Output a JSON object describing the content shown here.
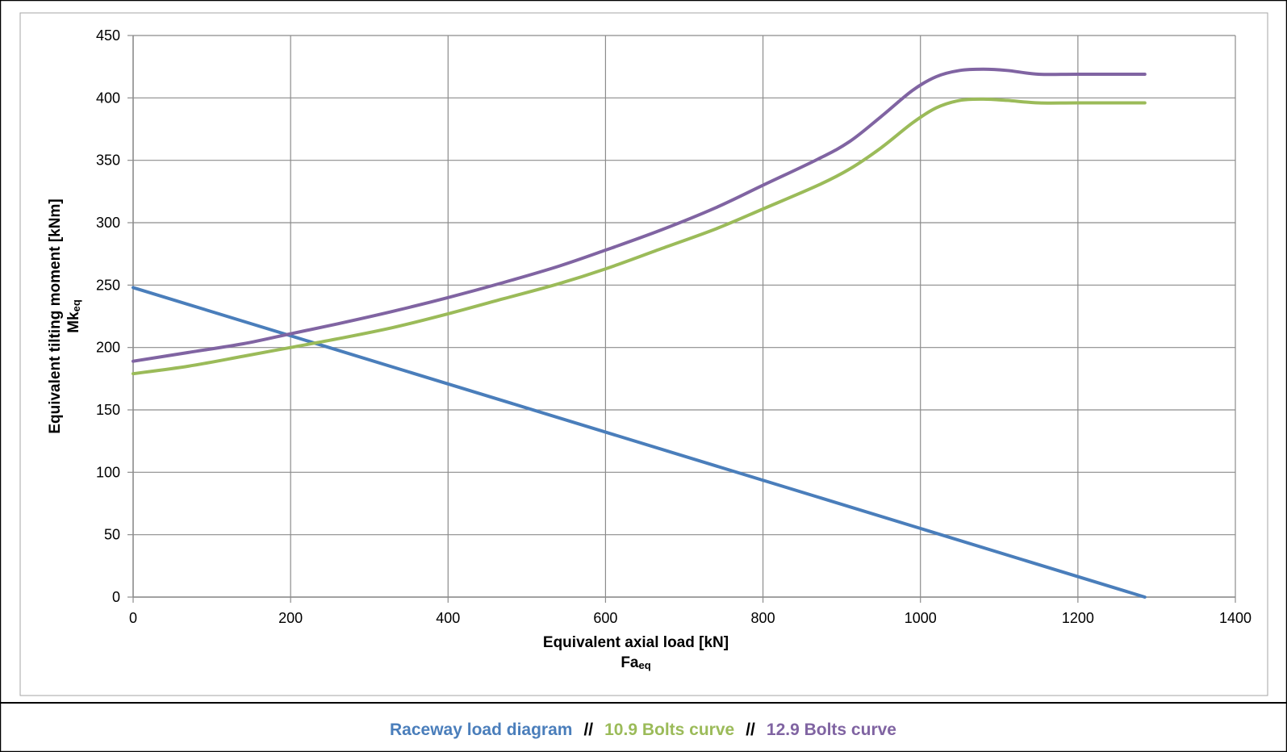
{
  "chart_data": {
    "type": "line",
    "title": "",
    "xlabel": "Equivalent axial load [kN]",
    "xlabel_symbol": "Fa",
    "xlabel_subscript": "eq",
    "ylabel": "Equivalent tilting moment [kNm]",
    "ylabel_symbol": "Mk",
    "ylabel_subscript": "eq",
    "xlim": [
      0,
      1400
    ],
    "ylim": [
      0,
      450
    ],
    "xticks": [
      "0",
      "200",
      "400",
      "600",
      "800",
      "1000",
      "1200",
      "1400"
    ],
    "yticks": [
      "0",
      "50",
      "100",
      "150",
      "200",
      "250",
      "300",
      "350",
      "400",
      "450"
    ],
    "grid": true,
    "legend_position": "bottom",
    "legend_separator": "//",
    "series": [
      {
        "name": "Raceway load diagram",
        "color": "#4a7ebb",
        "points": [
          [
            0,
            248
          ],
          [
            1285,
            0
          ]
        ]
      },
      {
        "name": "10.9 Bolts curve",
        "color": "#9bbb59",
        "points": [
          [
            0,
            179
          ],
          [
            70,
            185
          ],
          [
            140,
            193
          ],
          [
            200,
            200
          ],
          [
            260,
            207
          ],
          [
            330,
            216
          ],
          [
            400,
            227
          ],
          [
            470,
            239
          ],
          [
            540,
            251
          ],
          [
            600,
            263
          ],
          [
            670,
            279
          ],
          [
            740,
            295
          ],
          [
            800,
            311
          ],
          [
            870,
            330
          ],
          [
            910,
            343
          ],
          [
            950,
            360
          ],
          [
            990,
            380
          ],
          [
            1020,
            392
          ],
          [
            1050,
            398
          ],
          [
            1080,
            399
          ],
          [
            1110,
            398
          ],
          [
            1150,
            396
          ],
          [
            1200,
            396
          ],
          [
            1285,
            396
          ]
        ]
      },
      {
        "name": "12.9 Bolts curve",
        "color": "#8064a2",
        "points": [
          [
            0,
            189
          ],
          [
            70,
            196
          ],
          [
            140,
            203
          ],
          [
            200,
            211
          ],
          [
            260,
            219
          ],
          [
            330,
            229
          ],
          [
            400,
            240
          ],
          [
            470,
            252
          ],
          [
            540,
            265
          ],
          [
            600,
            278
          ],
          [
            670,
            294
          ],
          [
            740,
            312
          ],
          [
            800,
            330
          ],
          [
            870,
            351
          ],
          [
            910,
            365
          ],
          [
            950,
            385
          ],
          [
            990,
            406
          ],
          [
            1020,
            417
          ],
          [
            1050,
            422
          ],
          [
            1080,
            423
          ],
          [
            1110,
            422
          ],
          [
            1150,
            419
          ],
          [
            1200,
            419
          ],
          [
            1285,
            419
          ]
        ]
      }
    ]
  }
}
